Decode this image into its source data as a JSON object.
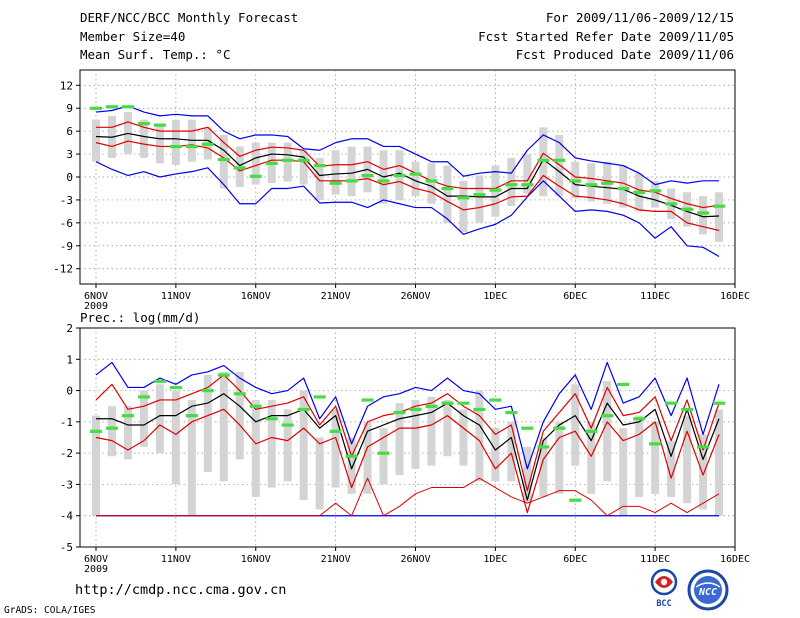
{
  "header": {
    "title": "DERF/NCC/BCC Monthly Forecast",
    "member_size": "Member Size=40",
    "variable": "Mean Surf. Temp.: °C",
    "period": "For 2009/11/06-2009/12/15",
    "refer_date": "Fcst Started Refer Date 2009/11/05",
    "produced_date": "Fcst Produced Date 2009/11/06"
  },
  "footer": {
    "url": "http://cmdp.ncc.cma.gov.cn",
    "credit": "GrADS: COLA/IGES",
    "logo_left_text": "BCC",
    "logo_right_text": "NCC"
  },
  "colors": {
    "box": "#d4d4d4",
    "envelope": "#0000ee",
    "mid_band": "#e00000",
    "median": "#000000",
    "observed": "#44dd44",
    "grid": "#909090"
  },
  "chart_data": [
    {
      "type": "line",
      "title": "Mean Surf. Temp.: °C",
      "ylim": [
        -14,
        14
      ],
      "yticks": [
        12,
        9,
        6,
        3,
        0,
        -3,
        -6,
        -9,
        -12
      ],
      "ytick_labels": [
        "12",
        "9",
        "6",
        "3",
        "0",
        "-3",
        "-6",
        "-9",
        "-12"
      ],
      "x_start_day": 0,
      "x_end_day": 40,
      "xticks": [
        0,
        5,
        10,
        15,
        20,
        25,
        30,
        35,
        40
      ],
      "xtick_labels": [
        "6NOV",
        "11NOV",
        "16NOV",
        "21NOV",
        "26NOV",
        "1DEC",
        "6DEC",
        "11DEC",
        "16DEC"
      ],
      "year_label": "2009",
      "days": [
        0,
        1,
        2,
        3,
        4,
        5,
        6,
        7,
        8,
        9,
        10,
        11,
        12,
        13,
        14,
        15,
        16,
        17,
        18,
        19,
        20,
        21,
        22,
        23,
        24,
        25,
        26,
        27,
        28,
        29,
        30,
        31,
        32,
        33,
        34,
        35,
        36,
        37,
        38,
        39
      ],
      "series": [
        {
          "name": "max",
          "values": [
            2,
            1,
            0.2,
            0.7,
            0,
            0.4,
            0.7,
            1.2,
            -1,
            -3.5,
            -3.5,
            -1.5,
            -1.5,
            -1.2,
            -3.4,
            -3.3,
            -3.3,
            -4,
            -3,
            -3.5,
            -4,
            -4,
            -5.5,
            -7.5,
            -6.8,
            -6.2,
            -5,
            -2.6,
            -0.5,
            -2.5,
            -4.5,
            -4.3,
            -4.5,
            -5,
            -6,
            -8,
            -6.5,
            -9,
            -9.2,
            -10.4
          ]
        },
        {
          "name": "upper",
          "values": [
            4.5,
            4,
            4.7,
            4.3,
            4,
            4,
            4.2,
            3.8,
            2.5,
            0.8,
            1.5,
            2.2,
            2.2,
            2,
            -0.5,
            -0.5,
            -0.5,
            -0.2,
            -1,
            -0.6,
            -1.5,
            -2,
            -3.2,
            -4.3,
            -4,
            -3.5,
            -2.6,
            -2.5,
            0.2,
            -1.2,
            -2.5,
            -2.7,
            -3,
            -3.5,
            -4.3,
            -4.5,
            -4.5,
            -6,
            -6.5,
            -7
          ]
        },
        {
          "name": "median",
          "values": [
            5.3,
            5.2,
            5.7,
            5.3,
            5,
            5,
            4.8,
            4.8,
            3.5,
            1.5,
            2.5,
            3,
            2.9,
            2.6,
            0.2,
            0.4,
            0.5,
            1,
            0,
            0.5,
            -0.5,
            -1.2,
            -2.5,
            -2.5,
            -2.6,
            -2.6,
            -1.5,
            -1.5,
            2.3,
            0.7,
            -1,
            -1.2,
            -1.4,
            -1.6,
            -2.5,
            -3,
            -3.7,
            -4.5,
            -5.2,
            -5.1
          ]
        },
        {
          "name": "lower",
          "values": [
            6.5,
            6.5,
            7.2,
            6.5,
            6,
            6,
            6,
            6.5,
            4.5,
            2.7,
            3.5,
            3.9,
            3.8,
            3.5,
            1.4,
            1.6,
            1.6,
            2,
            1,
            1.5,
            0.5,
            -0.5,
            -1.2,
            -1.5,
            -1.5,
            -1.5,
            -0.5,
            -0.5,
            3.1,
            1.6,
            0,
            -0.2,
            -0.5,
            -0.8,
            -1.7,
            -2,
            -2.8,
            -3.5,
            -4,
            -3.7
          ]
        },
        {
          "name": "min",
          "values": [
            8.5,
            8.7,
            9.3,
            8.5,
            8,
            8.2,
            8,
            8,
            6,
            5,
            5.5,
            5.5,
            5.3,
            3.7,
            3.5,
            4.5,
            5,
            5,
            4,
            4,
            3,
            2,
            2,
            0.1,
            0.5,
            0.7,
            0.5,
            3.5,
            5.5,
            4.5,
            2.5,
            2.1,
            1.8,
            1.5,
            0.5,
            -1,
            -0.5,
            -0.8,
            -0.5,
            -0.5
          ]
        },
        {
          "name": "box_low",
          "values": [
            2,
            2.5,
            3,
            2.5,
            1.8,
            1.6,
            2,
            2.3,
            -1.5,
            -1.3,
            -1,
            -0.8,
            -0.6,
            -1,
            -3,
            -2.3,
            -2.5,
            -2,
            -3.5,
            -3,
            -2.5,
            -3.5,
            -6,
            -7.2,
            -6,
            -5.2,
            -3.8,
            -2.2,
            -2.5,
            -2.5,
            -2.8,
            -3.2,
            -3.5,
            -4,
            -4.5,
            -4,
            -5.5,
            -6.5,
            -7.5,
            -8.5
          ]
        },
        {
          "name": "box_high",
          "values": [
            7.5,
            8,
            8.5,
            7.5,
            7,
            7.5,
            7.5,
            6.5,
            5.5,
            4,
            4.5,
            4.5,
            4.5,
            3.5,
            2.5,
            3.5,
            4,
            4,
            3.5,
            3.5,
            2,
            1.8,
            1.5,
            -0.5,
            0.2,
            1.5,
            2.5,
            3,
            6.5,
            5.5,
            2,
            1.8,
            2,
            1.5,
            0.5,
            -0.5,
            -1.5,
            -2,
            -2.5,
            -2
          ]
        },
        {
          "name": "observed",
          "values": [
            9,
            9.2,
            9.2,
            7,
            6.8,
            4,
            4,
            4.3,
            2.3,
            1.2,
            0.1,
            1.8,
            2.2,
            2.2,
            1.5,
            -0.8,
            -0.5,
            0.2,
            -0.5,
            0.2,
            0.4,
            -0.5,
            -1.5,
            -2.7,
            -2.3,
            -1.7,
            -1,
            -1,
            2.2,
            2.2,
            -0.5,
            -1,
            -0.8,
            -1.5,
            -2,
            -1.8,
            -3.5,
            -4.2,
            -4.7,
            -3.8
          ]
        }
      ]
    },
    {
      "type": "line",
      "title": "Prec.: log(mm/d)",
      "ylim": [
        -5,
        2
      ],
      "yticks": [
        2,
        1,
        0,
        -1,
        -2,
        -3,
        -4,
        -5
      ],
      "ytick_labels": [
        "2",
        "1",
        "0",
        "-1",
        "-2",
        "-3",
        "-4",
        "-5"
      ],
      "x_start_day": 0,
      "x_end_day": 40,
      "xticks": [
        0,
        5,
        10,
        15,
        20,
        25,
        30,
        35,
        40
      ],
      "xtick_labels": [
        "6NOV",
        "11NOV",
        "16NOV",
        "21NOV",
        "26NOV",
        "1DEC",
        "6DEC",
        "11DEC",
        "16DEC"
      ],
      "year_label": "2009",
      "days": [
        0,
        1,
        2,
        3,
        4,
        5,
        6,
        7,
        8,
        9,
        10,
        11,
        12,
        13,
        14,
        15,
        16,
        17,
        18,
        19,
        20,
        21,
        22,
        23,
        24,
        25,
        26,
        27,
        28,
        29,
        30,
        31,
        32,
        33,
        34,
        35,
        36,
        37,
        38,
        39
      ],
      "series": [
        {
          "name": "max",
          "values": [
            0.5,
            0.9,
            0.1,
            0.1,
            0.4,
            0.2,
            0.5,
            0.6,
            0.8,
            0.4,
            0.1,
            -0.1,
            0,
            0.4,
            -0.9,
            -0.2,
            -1.7,
            -0.5,
            -0.2,
            -0.1,
            0.1,
            0,
            0.4,
            0,
            -0.1,
            -0.6,
            -0.5,
            -2.5,
            -1,
            -0.1,
            0.5,
            -0.6,
            0.9,
            -0.4,
            -0.2,
            0.4,
            -0.8,
            0.4,
            -1.4,
            0.2
          ]
        },
        {
          "name": "upper",
          "values": [
            -0.3,
            0.2,
            -0.6,
            -0.5,
            -0.3,
            -0.3,
            -0.1,
            0.1,
            0.5,
            0,
            -0.6,
            -0.5,
            -0.4,
            -0.2,
            -1.1,
            -0.5,
            -2.1,
            -1,
            -0.8,
            -0.7,
            -0.5,
            -0.4,
            -0.1,
            -0.5,
            -0.8,
            -1.4,
            -1.1,
            -3.2,
            -1.3,
            -0.7,
            -0.1,
            -1.2,
            0.1,
            -0.8,
            -0.7,
            -0.2,
            -1.6,
            -0.3,
            -1.9,
            -0.4
          ]
        },
        {
          "name": "median",
          "values": [
            -0.9,
            -0.9,
            -1.1,
            -1.1,
            -0.8,
            -0.8,
            -0.5,
            -0.4,
            -0.1,
            -0.5,
            -1,
            -0.8,
            -0.8,
            -0.6,
            -1.2,
            -0.8,
            -2.5,
            -1.3,
            -1.1,
            -0.9,
            -0.8,
            -0.7,
            -0.4,
            -0.8,
            -1.1,
            -1.9,
            -1.5,
            -3.5,
            -1.6,
            -1.1,
            -0.8,
            -1.6,
            -0.4,
            -1.1,
            -1,
            -0.6,
            -2.1,
            -0.6,
            -2.2,
            -0.9
          ]
        },
        {
          "name": "lower",
          "values": [
            -1.5,
            -1.6,
            -1.9,
            -1.6,
            -1.1,
            -1.4,
            -1,
            -0.8,
            -0.6,
            -1.1,
            -1.7,
            -1.5,
            -1.6,
            -1.2,
            -1.7,
            -1.5,
            -3.1,
            -1.8,
            -1.5,
            -1.2,
            -1.2,
            -1.1,
            -0.8,
            -1.2,
            -1.6,
            -2.5,
            -2,
            -3.9,
            -2.2,
            -1.5,
            -1.3,
            -2.1,
            -1,
            -1.6,
            -1.4,
            -1,
            -2.8,
            -1.3,
            -2.7,
            -1.4
          ]
        },
        {
          "name": "p10",
          "values": [
            -4,
            -4,
            -4,
            -4,
            -4,
            -4,
            -4,
            -4,
            -4,
            -4,
            -4,
            -4,
            -4,
            -4,
            -4,
            -3.6,
            -4,
            -2.8,
            -4,
            -3.7,
            -3.3,
            -3.1,
            -3.1,
            -3.1,
            -2.8,
            -3.1,
            -3.4,
            -3.6,
            -3.4,
            -3.2,
            -3.2,
            -3.5,
            -4,
            -3.7,
            -3.7,
            -3.9,
            -3.6,
            -3.9,
            -3.6,
            -3.3
          ]
        },
        {
          "name": "min",
          "values": [
            -4,
            -4,
            -4,
            -4,
            -4,
            -4,
            -4,
            -4,
            -4,
            -4,
            -4,
            -4,
            -4,
            -4,
            -4,
            -4,
            -4,
            -4,
            -4,
            -4,
            -4,
            -4,
            -4,
            -4,
            -4,
            -4,
            -4,
            -4,
            -4,
            -4,
            -4,
            -4,
            -4,
            -4,
            -4,
            -4,
            -4,
            -4,
            -4,
            -4
          ]
        },
        {
          "name": "box_low",
          "values": [
            -4,
            -2.1,
            -2.2,
            -1.8,
            -2,
            -3,
            -4,
            -2.6,
            -2.9,
            -2.2,
            -3.4,
            -3.1,
            -2.9,
            -3.5,
            -3.8,
            -3.1,
            -3.3,
            -3.3,
            -3,
            -2.7,
            -2.5,
            -2.4,
            -2.1,
            -2.4,
            -2.9,
            -2.9,
            -2.9,
            -3.6,
            -3.4,
            -3.3,
            -2.4,
            -3.3,
            -2.9,
            -4,
            -3.4,
            -3.3,
            -3.4,
            -3.6,
            -3.8,
            -4
          ]
        },
        {
          "name": "box_high",
          "values": [
            -0.8,
            -0.5,
            -0.5,
            0,
            0.2,
            0,
            -0.3,
            0.5,
            0.6,
            0.6,
            -0.3,
            -0.3,
            -0.6,
            0,
            -1.5,
            -0.6,
            -1.5,
            -1,
            -1.2,
            -0.4,
            -0.3,
            -0.2,
            -0.3,
            -0.6,
            0,
            -1.2,
            -1,
            -1.8,
            -1.5,
            -1,
            0.2,
            -1,
            0.3,
            -1.2,
            -0.8,
            -1,
            -1.6,
            -0.8,
            -1.4,
            -0.6
          ]
        },
        {
          "name": "observed",
          "values": [
            -1.3,
            -1.2,
            -0.8,
            -0.2,
            0.3,
            0.1,
            -0.8,
            0,
            0.5,
            -0.1,
            -0.5,
            -0.9,
            -1.1,
            -0.6,
            -0.2,
            -1.3,
            -2.1,
            -0.3,
            -2,
            -0.7,
            -0.6,
            -0.5,
            -0.4,
            -0.4,
            -0.6,
            -0.3,
            -0.7,
            -1.2,
            -1.8,
            -1.2,
            -3.5,
            -1.3,
            -0.8,
            0.2,
            -0.9,
            -1.7,
            -0.4,
            -0.6,
            -1.8,
            -0.4
          ]
        }
      ]
    }
  ]
}
